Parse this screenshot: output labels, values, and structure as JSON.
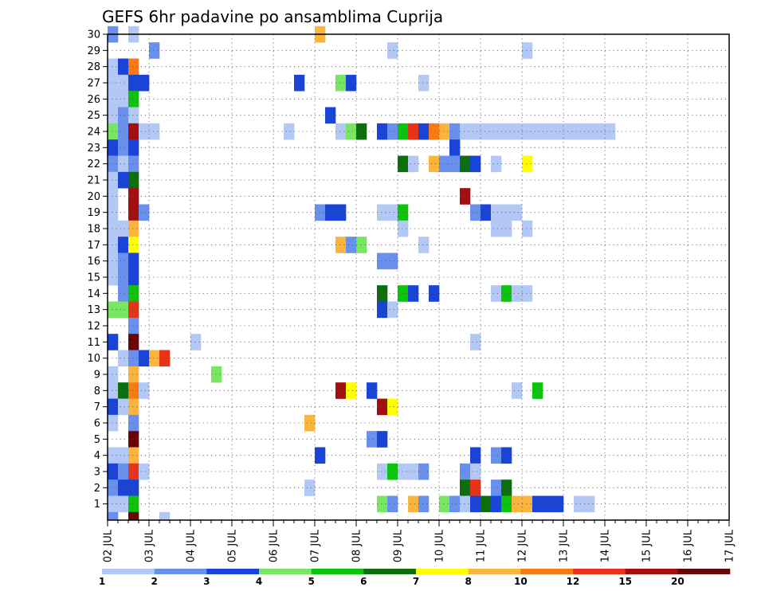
{
  "chart_data": {
    "type": "heatmap",
    "title": "GEFS 6hr padavine po ansamblima Cuprija",
    "x_tick_labels": [
      "02 JUL",
      "03 JUL",
      "04 JUL",
      "05 JUL",
      "06 JUL",
      "07 JUL",
      "08 JUL",
      "09 JUL",
      "10 JUL",
      "11 JUL",
      "12 JUL",
      "13 JUL",
      "14 JUL",
      "15 JUL",
      "16 JUL",
      "17 JUL"
    ],
    "y_tick_labels": [
      "1",
      "2",
      "3",
      "4",
      "5",
      "6",
      "7",
      "8",
      "9",
      "10",
      "11",
      "12",
      "13",
      "14",
      "15",
      "16",
      "17",
      "18",
      "19",
      "20",
      "21",
      "22",
      "23",
      "24",
      "25",
      "26",
      "27",
      "28",
      "29",
      "30"
    ],
    "x_range": [
      0,
      60
    ],
    "y_range": [
      0,
      30
    ],
    "legend": {
      "colors": [
        "#b4c8f5",
        "#6a90ee",
        "#1a43d8",
        "#77e661",
        "#0dc40d",
        "#0c6e0c",
        "#ffff00",
        "#fbb43c",
        "#f97a12",
        "#e83318",
        "#a50e0e",
        "#6b0404"
      ],
      "labels": [
        "1",
        "2",
        "3",
        "4",
        "5",
        "6",
        "7",
        "8",
        "10",
        "12",
        "15",
        "20"
      ]
    },
    "cells": [
      [
        0,
        30,
        2
      ],
      [
        2,
        30,
        1
      ],
      [
        20,
        30,
        8
      ],
      [
        4,
        29,
        2
      ],
      [
        27,
        29,
        1
      ],
      [
        40,
        29,
        1
      ],
      [
        0,
        28,
        1
      ],
      [
        1,
        28,
        3
      ],
      [
        2,
        28,
        9
      ],
      [
        0,
        27,
        1
      ],
      [
        1,
        27,
        1
      ],
      [
        2,
        27,
        3
      ],
      [
        3,
        27,
        3
      ],
      [
        18,
        27,
        3
      ],
      [
        22,
        27,
        4
      ],
      [
        23,
        27,
        3
      ],
      [
        30,
        27,
        1
      ],
      [
        0,
        26,
        1
      ],
      [
        1,
        26,
        1
      ],
      [
        2,
        26,
        5
      ],
      [
        0,
        25,
        1
      ],
      [
        1,
        25,
        2
      ],
      [
        2,
        25,
        1
      ],
      [
        21,
        25,
        3
      ],
      [
        0,
        24,
        4
      ],
      [
        1,
        24,
        2
      ],
      [
        2,
        24,
        11
      ],
      [
        3,
        24,
        1
      ],
      [
        4,
        24,
        1
      ],
      [
        17,
        24,
        1
      ],
      [
        22,
        24,
        1
      ],
      [
        23,
        24,
        4
      ],
      [
        24,
        24,
        6
      ],
      [
        26,
        24,
        3
      ],
      [
        27,
        24,
        2
      ],
      [
        28,
        24,
        5
      ],
      [
        29,
        24,
        10
      ],
      [
        30,
        24,
        3
      ],
      [
        31,
        24,
        9
      ],
      [
        32,
        24,
        8
      ],
      [
        33,
        24,
        2
      ],
      [
        34,
        24,
        1
      ],
      [
        35,
        24,
        1
      ],
      [
        36,
        24,
        1
      ],
      [
        37,
        24,
        1
      ],
      [
        38,
        24,
        1
      ],
      [
        39,
        24,
        1
      ],
      [
        40,
        24,
        1
      ],
      [
        41,
        24,
        1
      ],
      [
        42,
        24,
        1
      ],
      [
        43,
        24,
        1
      ],
      [
        44,
        24,
        1
      ],
      [
        45,
        24,
        1
      ],
      [
        46,
        24,
        1
      ],
      [
        47,
        24,
        1
      ],
      [
        48,
        24,
        1
      ],
      [
        0,
        23,
        3
      ],
      [
        1,
        23,
        2
      ],
      [
        2,
        23,
        3
      ],
      [
        33,
        23,
        3
      ],
      [
        0,
        22,
        2
      ],
      [
        1,
        22,
        1
      ],
      [
        2,
        22,
        2
      ],
      [
        28,
        22,
        6
      ],
      [
        29,
        22,
        1
      ],
      [
        31,
        22,
        8
      ],
      [
        32,
        22,
        2
      ],
      [
        33,
        22,
        2
      ],
      [
        34,
        22,
        6
      ],
      [
        35,
        22,
        3
      ],
      [
        37,
        22,
        1
      ],
      [
        40,
        22,
        7
      ],
      [
        0,
        21,
        1
      ],
      [
        1,
        21,
        3
      ],
      [
        2,
        21,
        6
      ],
      [
        0,
        20,
        1
      ],
      [
        2,
        20,
        11
      ],
      [
        34,
        20,
        11
      ],
      [
        0,
        19,
        1
      ],
      [
        2,
        19,
        11
      ],
      [
        3,
        19,
        2
      ],
      [
        20,
        19,
        2
      ],
      [
        21,
        19,
        3
      ],
      [
        22,
        19,
        3
      ],
      [
        26,
        19,
        1
      ],
      [
        27,
        19,
        1
      ],
      [
        28,
        19,
        5
      ],
      [
        35,
        19,
        2
      ],
      [
        36,
        19,
        3
      ],
      [
        37,
        19,
        1
      ],
      [
        38,
        19,
        1
      ],
      [
        39,
        19,
        1
      ],
      [
        0,
        18,
        1
      ],
      [
        1,
        18,
        1
      ],
      [
        2,
        18,
        8
      ],
      [
        28,
        18,
        1
      ],
      [
        37,
        18,
        1
      ],
      [
        38,
        18,
        1
      ],
      [
        40,
        18,
        1
      ],
      [
        0,
        17,
        1
      ],
      [
        1,
        17,
        3
      ],
      [
        2,
        17,
        7
      ],
      [
        22,
        17,
        8
      ],
      [
        23,
        17,
        2
      ],
      [
        24,
        17,
        4
      ],
      [
        30,
        17,
        1
      ],
      [
        0,
        16,
        1
      ],
      [
        1,
        16,
        2
      ],
      [
        2,
        16,
        3
      ],
      [
        26,
        16,
        2
      ],
      [
        27,
        16,
        2
      ],
      [
        0,
        15,
        1
      ],
      [
        1,
        15,
        2
      ],
      [
        2,
        15,
        3
      ],
      [
        1,
        14,
        2
      ],
      [
        2,
        14,
        5
      ],
      [
        26,
        14,
        6
      ],
      [
        28,
        14,
        5
      ],
      [
        29,
        14,
        3
      ],
      [
        31,
        14,
        3
      ],
      [
        37,
        14,
        1
      ],
      [
        38,
        14,
        5
      ],
      [
        39,
        14,
        1
      ],
      [
        40,
        14,
        1
      ],
      [
        0,
        13,
        4
      ],
      [
        1,
        13,
        4
      ],
      [
        2,
        13,
        10
      ],
      [
        26,
        13,
        3
      ],
      [
        27,
        13,
        1
      ],
      [
        2,
        12,
        2
      ],
      [
        0,
        11,
        3
      ],
      [
        2,
        11,
        12
      ],
      [
        8,
        11,
        1
      ],
      [
        35,
        11,
        1
      ],
      [
        1,
        10,
        1
      ],
      [
        2,
        10,
        2
      ],
      [
        3,
        10,
        3
      ],
      [
        4,
        10,
        8
      ],
      [
        5,
        10,
        10
      ],
      [
        0,
        9,
        1
      ],
      [
        2,
        9,
        8
      ],
      [
        10,
        9,
        4
      ],
      [
        0,
        8,
        1
      ],
      [
        1,
        8,
        6
      ],
      [
        2,
        8,
        9
      ],
      [
        3,
        8,
        1
      ],
      [
        22,
        8,
        11
      ],
      [
        23,
        8,
        7
      ],
      [
        25,
        8,
        3
      ],
      [
        39,
        8,
        1
      ],
      [
        41,
        8,
        5
      ],
      [
        0,
        7,
        3
      ],
      [
        1,
        7,
        1
      ],
      [
        2,
        7,
        8
      ],
      [
        26,
        7,
        11
      ],
      [
        27,
        7,
        7
      ],
      [
        0,
        6,
        1
      ],
      [
        2,
        6,
        2
      ],
      [
        19,
        6,
        8
      ],
      [
        2,
        5,
        12
      ],
      [
        25,
        5,
        2
      ],
      [
        26,
        5,
        3
      ],
      [
        0,
        4,
        1
      ],
      [
        1,
        4,
        1
      ],
      [
        2,
        4,
        8
      ],
      [
        20,
        4,
        3
      ],
      [
        35,
        4,
        3
      ],
      [
        37,
        4,
        2
      ],
      [
        38,
        4,
        3
      ],
      [
        0,
        3,
        3
      ],
      [
        1,
        3,
        2
      ],
      [
        2,
        3,
        10
      ],
      [
        3,
        3,
        1
      ],
      [
        26,
        3,
        1
      ],
      [
        27,
        3,
        5
      ],
      [
        28,
        3,
        1
      ],
      [
        29,
        3,
        1
      ],
      [
        30,
        3,
        2
      ],
      [
        34,
        3,
        2
      ],
      [
        35,
        3,
        1
      ],
      [
        0,
        2,
        2
      ],
      [
        1,
        2,
        3
      ],
      [
        2,
        2,
        3
      ],
      [
        19,
        2,
        1
      ],
      [
        34,
        2,
        6
      ],
      [
        35,
        2,
        10
      ],
      [
        37,
        2,
        2
      ],
      [
        38,
        2,
        6
      ],
      [
        0,
        1,
        1
      ],
      [
        1,
        1,
        1
      ],
      [
        2,
        1,
        5
      ],
      [
        26,
        1,
        4
      ],
      [
        27,
        1,
        2
      ],
      [
        29,
        1,
        8
      ],
      [
        30,
        1,
        2
      ],
      [
        32,
        1,
        4
      ],
      [
        33,
        1,
        2
      ],
      [
        34,
        1,
        1
      ],
      [
        35,
        1,
        3
      ],
      [
        36,
        1,
        6
      ],
      [
        37,
        1,
        3
      ],
      [
        38,
        1,
        5
      ],
      [
        39,
        1,
        8
      ],
      [
        40,
        1,
        8
      ],
      [
        41,
        1,
        3
      ],
      [
        42,
        1,
        3
      ],
      [
        43,
        1,
        3
      ],
      [
        45,
        1,
        1
      ],
      [
        46,
        1,
        1
      ],
      [
        0,
        0,
        2
      ],
      [
        2,
        0,
        12
      ],
      [
        5,
        0,
        1
      ]
    ]
  }
}
